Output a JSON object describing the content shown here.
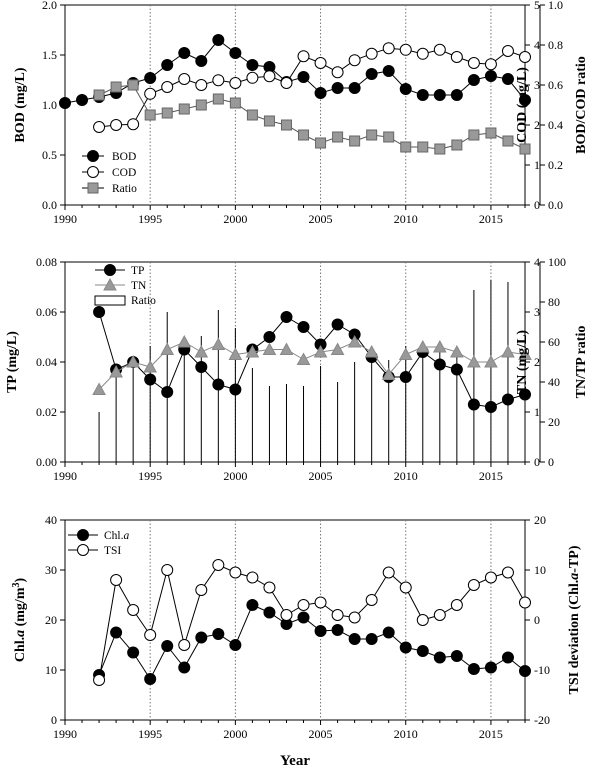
{
  "chart_data": [
    {
      "type": "line",
      "panel": "top",
      "x": [
        1990,
        1991,
        1992,
        1993,
        1994,
        1995,
        1996,
        1997,
        1998,
        1999,
        2000,
        2001,
        2002,
        2003,
        2004,
        2005,
        2006,
        2007,
        2008,
        2009,
        2010,
        2011,
        2012,
        2013,
        2014,
        2015,
        2016,
        2017
      ],
      "xlim": [
        1990,
        2017
      ],
      "xticks": [
        "1990",
        "1995",
        "2000",
        "2005",
        "2010",
        "2015"
      ],
      "ylabel_left": "BOD (mg/L)",
      "ylim_left": [
        0,
        2.0
      ],
      "yticks_left": [
        "0.0",
        "0.5",
        "1.0",
        "1.5",
        "2.0"
      ],
      "ylabel_right": "COD (mg/L)",
      "ylim_right": [
        0,
        5
      ],
      "yticks_right": [
        "0",
        "1",
        "2",
        "3",
        "4",
        "5"
      ],
      "ylabel_far_right": "BOD/COD ratio",
      "ylim_far_right": [
        0,
        1.0
      ],
      "yticks_far_right": [
        "0.0",
        "0.2",
        "0.4",
        "0.6",
        "0.8",
        "1.0"
      ],
      "series": [
        {
          "name": "BOD",
          "axis": "left",
          "marker": "filled-circle",
          "values": [
            1.02,
            1.05,
            1.08,
            1.12,
            1.22,
            1.27,
            1.4,
            1.52,
            1.44,
            1.65,
            1.52,
            1.4,
            1.38,
            1.23,
            1.28,
            1.12,
            1.17,
            1.17,
            1.31,
            1.34,
            1.16,
            1.1,
            1.1,
            1.1,
            1.25,
            1.29,
            1.26,
            1.05
          ]
        },
        {
          "name": "COD",
          "axis": "right",
          "marker": "open-circle",
          "values": [
            null,
            null,
            1.95,
            2.0,
            2.02,
            2.78,
            2.95,
            3.15,
            3.0,
            3.12,
            3.05,
            3.18,
            3.22,
            3.05,
            3.72,
            3.55,
            3.32,
            3.62,
            3.78,
            3.92,
            3.88,
            3.78,
            3.88,
            3.7,
            3.55,
            3.52,
            3.85,
            3.7
          ]
        },
        {
          "name": "Ratio",
          "axis": "far_right",
          "marker": "grey-square",
          "values": [
            null,
            null,
            0.55,
            0.59,
            0.6,
            0.45,
            0.46,
            0.48,
            0.5,
            0.53,
            0.51,
            0.45,
            0.42,
            0.4,
            0.35,
            0.31,
            0.34,
            0.32,
            0.35,
            0.34,
            0.29,
            0.29,
            0.28,
            0.3,
            0.35,
            0.36,
            0.32,
            0.28
          ]
        }
      ],
      "reference_years": [
        1995,
        2000,
        2005,
        2010,
        2015
      ],
      "legend": "lower-left"
    },
    {
      "type": "line",
      "panel": "middle",
      "x": [
        1990,
        1991,
        1992,
        1993,
        1994,
        1995,
        1996,
        1997,
        1998,
        1999,
        2000,
        2001,
        2002,
        2003,
        2004,
        2005,
        2006,
        2007,
        2008,
        2009,
        2010,
        2011,
        2012,
        2013,
        2014,
        2015,
        2016,
        2017
      ],
      "xlim": [
        1990,
        2017
      ],
      "xticks": [
        "1990",
        "1995",
        "2000",
        "2005",
        "2010",
        "2015"
      ],
      "ylabel_left": "TP (mg/L)",
      "ylim_left": [
        0,
        0.08
      ],
      "yticks_left": [
        "0.00",
        "0.02",
        "0.04",
        "0.06",
        "0.08"
      ],
      "ylabel_right": "TN (mg/L)",
      "ylim_right": [
        0,
        4
      ],
      "yticks_right": [
        "0",
        "1",
        "2",
        "3",
        "4"
      ],
      "ylabel_far_right": "TN/TP ratio",
      "ylim_far_right": [
        0,
        100
      ],
      "yticks_far_right": [
        "0",
        "20",
        "40",
        "60",
        "80",
        "100"
      ],
      "series": [
        {
          "name": "TP",
          "axis": "left",
          "marker": "filled-circle",
          "values": [
            null,
            null,
            0.06,
            0.037,
            0.04,
            0.033,
            0.028,
            0.045,
            0.038,
            0.031,
            0.029,
            0.045,
            0.05,
            0.058,
            0.054,
            0.047,
            0.055,
            0.051,
            0.042,
            0.034,
            0.034,
            0.044,
            0.039,
            0.037,
            0.023,
            0.022,
            0.025,
            0.027
          ]
        },
        {
          "name": "TN",
          "axis": "right",
          "marker": "grey-triangle",
          "values": [
            null,
            null,
            1.45,
            1.8,
            2.0,
            1.9,
            2.25,
            2.4,
            2.2,
            2.35,
            2.15,
            2.2,
            2.25,
            2.25,
            2.05,
            2.2,
            2.25,
            2.4,
            2.2,
            1.75,
            2.15,
            2.3,
            2.3,
            2.2,
            2.0,
            2.0,
            2.2,
            2.15
          ]
        },
        {
          "name": "Ratio",
          "axis": "far_right",
          "marker": "bar",
          "values": [
            null,
            null,
            25,
            43,
            51,
            58,
            75,
            56,
            63,
            76,
            67,
            47,
            38,
            39,
            38,
            48,
            40,
            50,
            50,
            51,
            58,
            54,
            57,
            55,
            86,
            91,
            90,
            80
          ]
        }
      ],
      "reference_years": [
        1995,
        2000,
        2005,
        2010,
        2015
      ],
      "legend": "top-left"
    },
    {
      "type": "line",
      "panel": "bottom",
      "x": [
        1990,
        1991,
        1992,
        1993,
        1994,
        1995,
        1996,
        1997,
        1998,
        1999,
        2000,
        2001,
        2002,
        2003,
        2004,
        2005,
        2006,
        2007,
        2008,
        2009,
        2010,
        2011,
        2012,
        2013,
        2014,
        2015,
        2016,
        2017
      ],
      "xlim": [
        1990,
        2017
      ],
      "xticks": [
        "1990",
        "1995",
        "2000",
        "2005",
        "2010",
        "2015"
      ],
      "xlabel": "Year",
      "ylabel_left": "Chl.a (mg/m3)",
      "ylim_left": [
        0,
        40
      ],
      "yticks_left": [
        "0",
        "10",
        "20",
        "30",
        "40"
      ],
      "ylabel_right": "TSI deviation (Chl.a-TP)",
      "ylim_right": [
        -20,
        20
      ],
      "yticks_right": [
        "-20",
        "-10",
        "0",
        "10",
        "20"
      ],
      "series": [
        {
          "name": "Chl.a",
          "axis": "left",
          "marker": "filled-circle",
          "values": [
            null,
            null,
            9,
            17.5,
            13.5,
            8.2,
            14.8,
            10.5,
            16.5,
            17.2,
            15,
            23,
            21.5,
            19.2,
            20.5,
            17.8,
            18,
            16.2,
            16.2,
            17.5,
            14.5,
            13.8,
            12.5,
            12.8,
            10.2,
            10.5,
            12.5,
            9.8
          ]
        },
        {
          "name": "TSI",
          "axis": "right",
          "marker": "open-circle",
          "values": [
            null,
            null,
            -12,
            8,
            2,
            -3,
            10,
            -5,
            6,
            11,
            9.5,
            8.5,
            6.5,
            1,
            3,
            3.5,
            1,
            0.5,
            4,
            9.5,
            6.5,
            0,
            1,
            3,
            7,
            8.5,
            9.5,
            3.5
          ]
        }
      ],
      "reference_years": [
        1995,
        2000,
        2005,
        2010,
        2015
      ],
      "legend": "top-left"
    }
  ],
  "legend_labels": {
    "p1": [
      "BOD",
      "COD",
      "Ratio"
    ],
    "p2": [
      "TP",
      "TN",
      "Ratio"
    ],
    "p3_chl": "Chl.",
    "p3_chl_italic": "a",
    "p3_tsi": "TSI"
  },
  "axis_titles": {
    "p1_left": "BOD (mg/L)",
    "p1_right": "COD (mg/L)",
    "p1_far_right": "BOD/COD ratio",
    "p2_left": "TP (mg/L)",
    "p2_right": "TN (mg/L)",
    "p2_far_right": "TN/TP ratio",
    "p3_left_pre": "Chl.",
    "p3_left_it": "a",
    "p3_left_post": " (mg/m",
    "p3_left_sup": "3",
    "p3_left_end": ")",
    "p3_right_pre": "TSI deviation (Chl.",
    "p3_right_it": "a",
    "p3_right_post": "-TP)",
    "x_title": "Year"
  }
}
